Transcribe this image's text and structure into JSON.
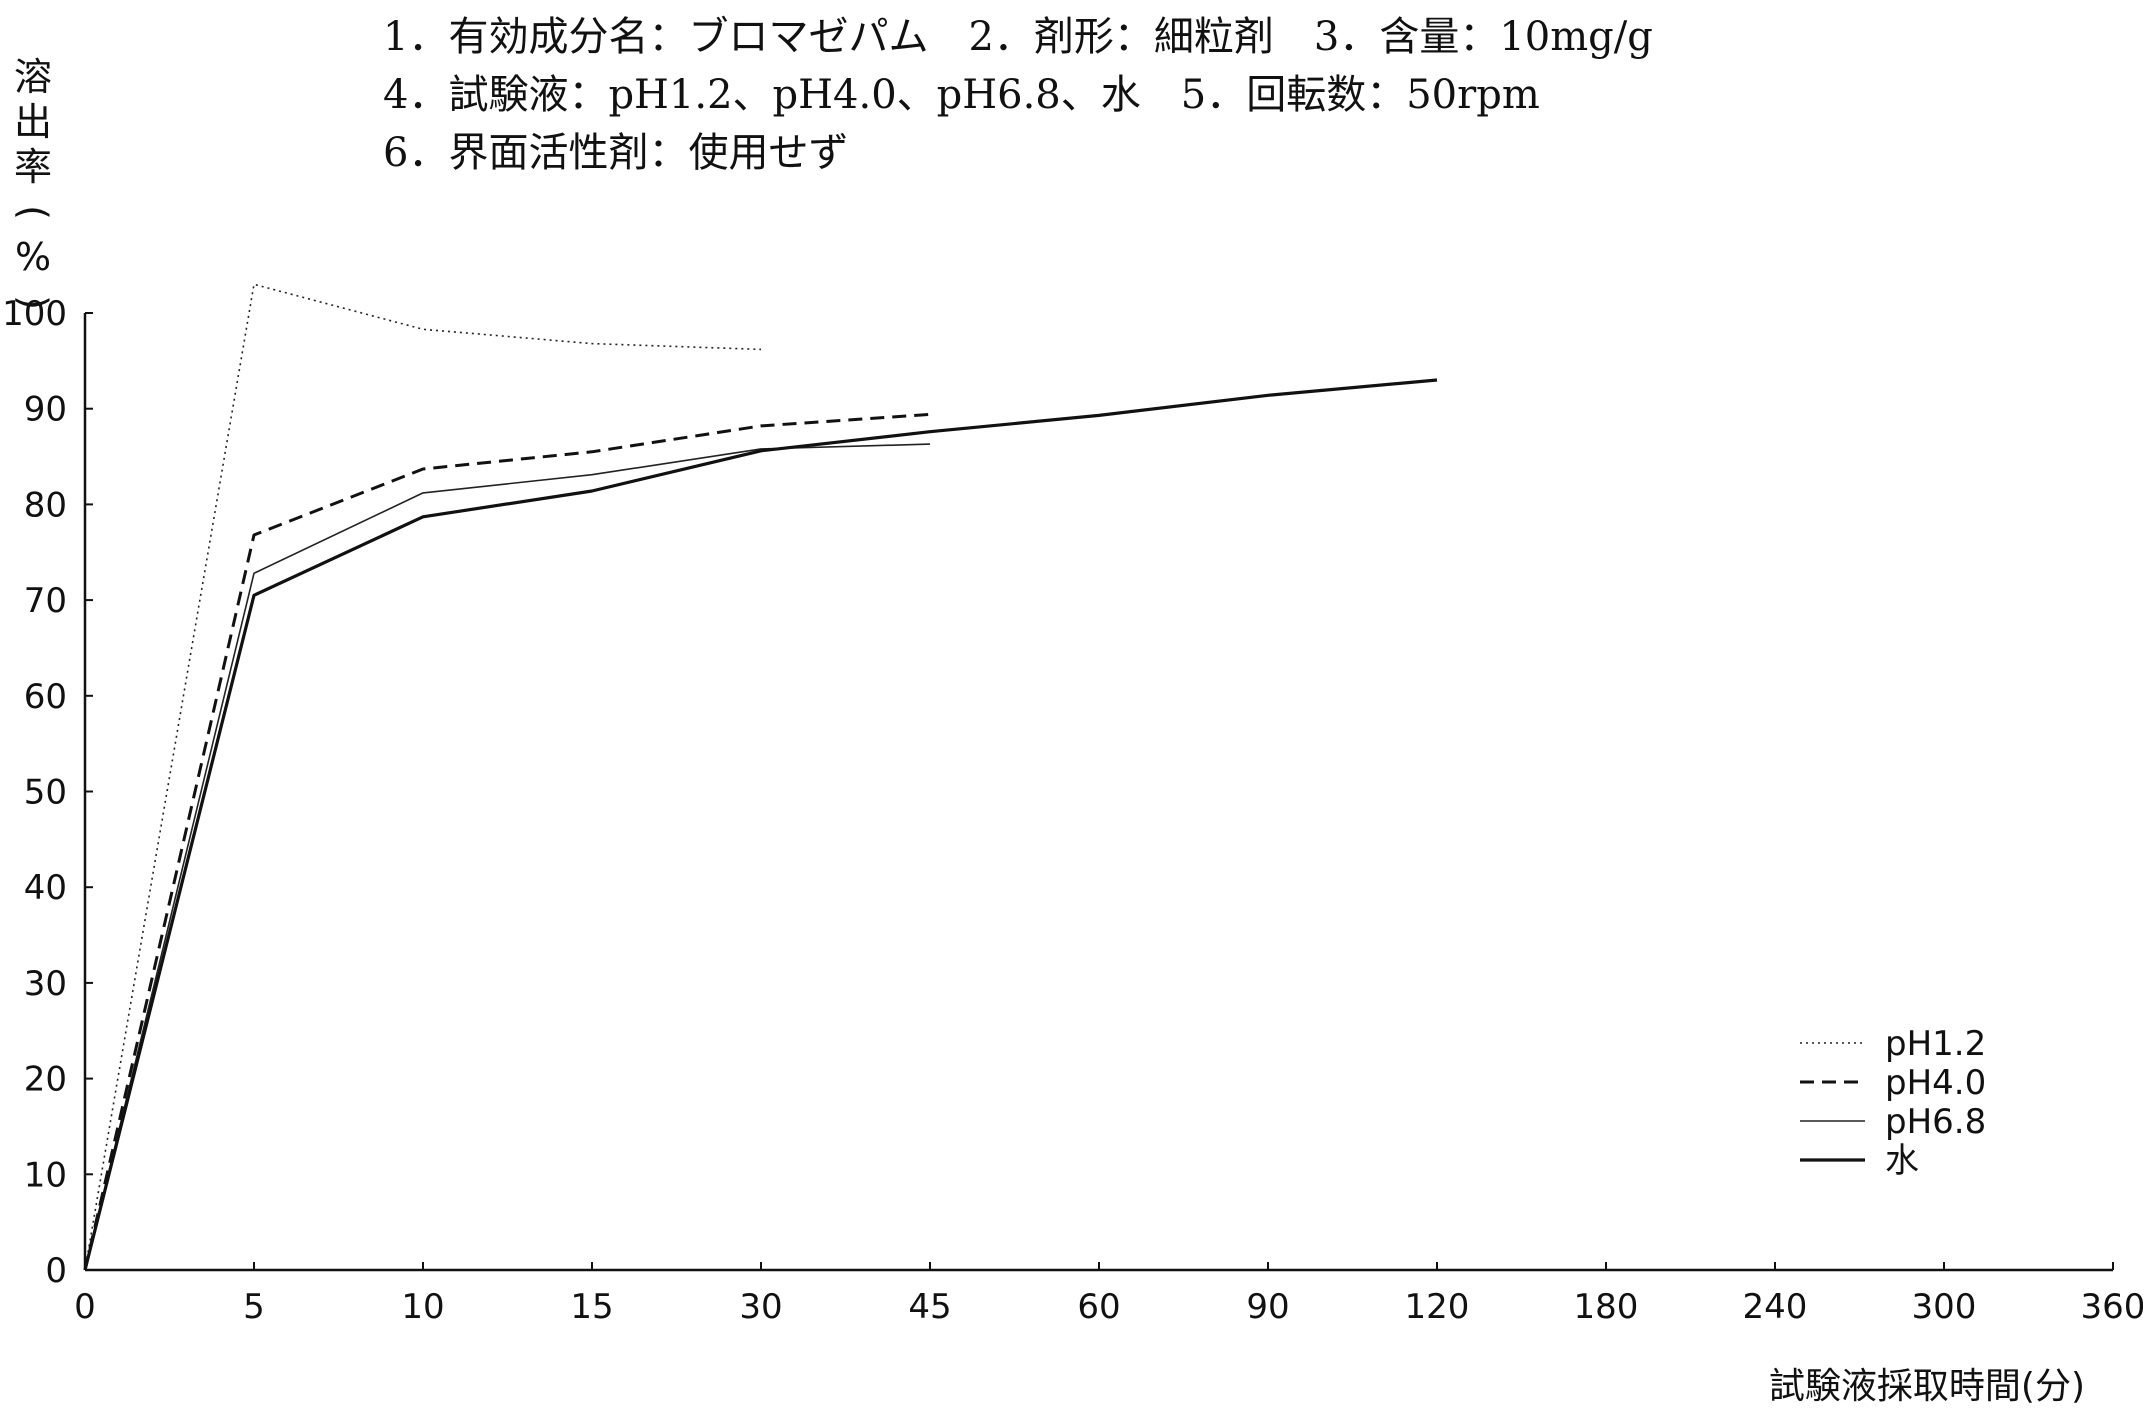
{
  "header": {
    "line1": "1．有効成分名：ブロマゼパム　2．剤形：細粒剤　3．含量：10mg/g",
    "line2": "4．試験液：pH1.2、pH4.0、pH6.8、水　5．回転数：50rpm",
    "line3": "6．界面活性剤：使用せず"
  },
  "chart_data": {
    "type": "line",
    "ylabel": "溶出率(%)",
    "ylabel_chars": [
      "溶",
      "出",
      "率",
      "(",
      "%",
      ")"
    ],
    "xlabel": "試験液採取時間(分)",
    "x_ticks": [
      "0",
      "5",
      "10",
      "15",
      "30",
      "45",
      "60",
      "90",
      "120",
      "180",
      "240",
      "300",
      "360"
    ],
    "y_ticks": [
      "0",
      "10",
      "20",
      "30",
      "40",
      "50",
      "60",
      "70",
      "80",
      "90",
      "100"
    ],
    "ylim": [
      0,
      100
    ],
    "x_scale": "categorical (equally spaced ticks)",
    "grid": false,
    "legend_position": "bottom-right",
    "series": [
      {
        "name": "pH1.2",
        "style": "dotted",
        "color": "#222222",
        "x": [
          0,
          5,
          10,
          15,
          30
        ],
        "y": [
          0,
          103,
          98.3,
          96.8,
          96.2
        ]
      },
      {
        "name": "pH4.0",
        "style": "dashed",
        "color": "#111111",
        "x": [
          0,
          5,
          10,
          15,
          30,
          45
        ],
        "y": [
          0,
          76.8,
          83.7,
          85.5,
          88.2,
          89.4
        ]
      },
      {
        "name": "pH6.8",
        "style": "solid-thin",
        "color": "#222222",
        "x": [
          0,
          5,
          10,
          15,
          30,
          45
        ],
        "y": [
          0,
          72.8,
          81.2,
          83.1,
          85.8,
          86.3
        ]
      },
      {
        "name": "水",
        "style": "solid-thick",
        "color": "#111111",
        "x": [
          0,
          5,
          10,
          15,
          30,
          45,
          60,
          90,
          120
        ],
        "y": [
          0,
          70.5,
          78.7,
          81.4,
          85.6,
          87.6,
          89.3,
          91.4,
          93.0
        ]
      }
    ]
  }
}
